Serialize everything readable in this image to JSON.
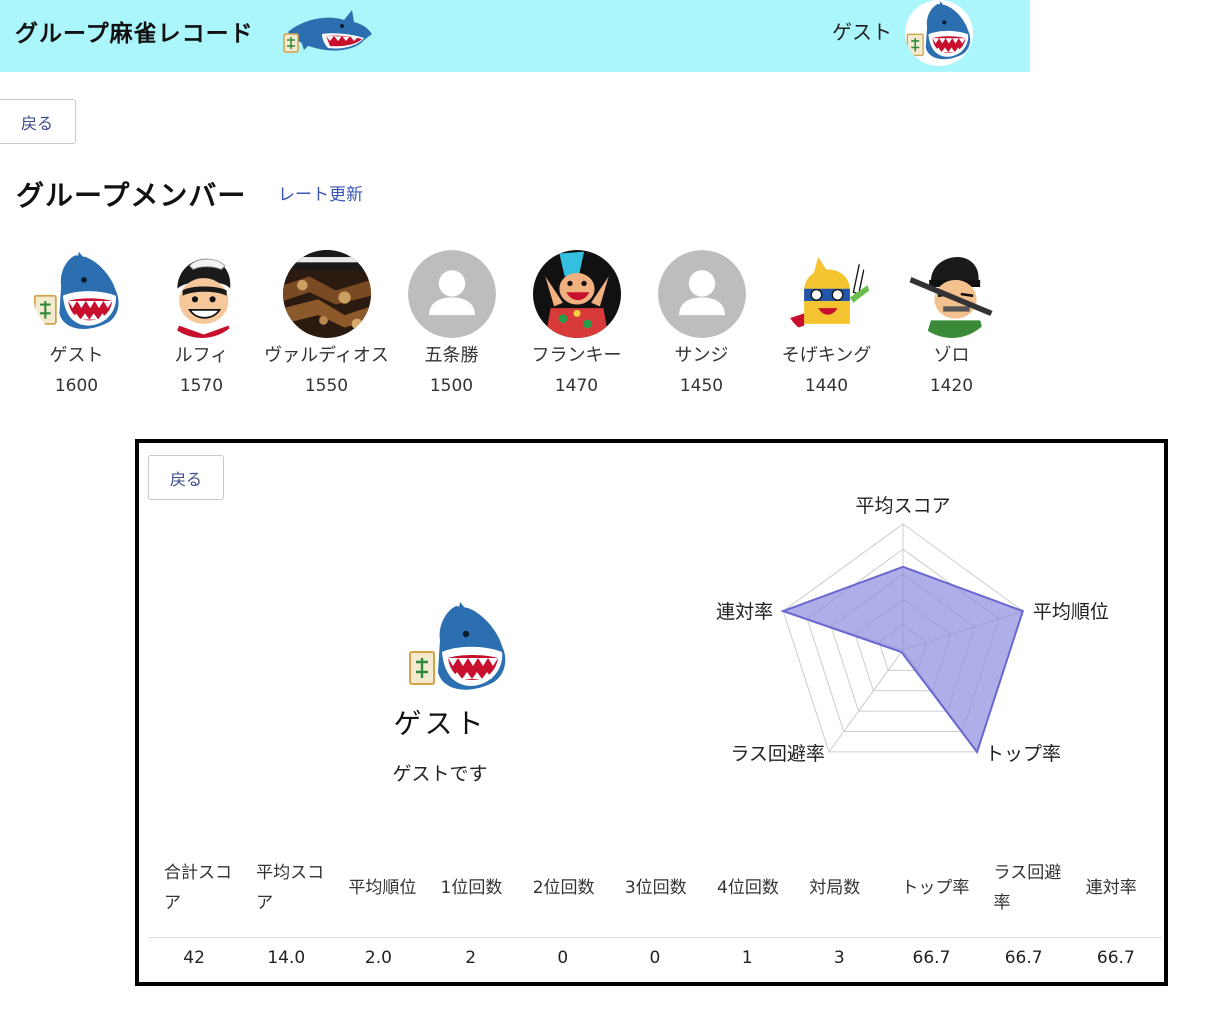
{
  "header": {
    "title": "グループ麻雀レコード",
    "user_name": "ゲスト"
  },
  "back_button_label": "戻る",
  "group": {
    "title": "グループメンバー",
    "rate_update_label": "レート更新",
    "members": [
      {
        "name": "ゲスト",
        "rate": "1600",
        "avatar": "shark-mahjong-icon"
      },
      {
        "name": "ルフィ",
        "rate": "1570",
        "avatar": "luffy-avatar"
      },
      {
        "name": "ヴァルディオス",
        "rate": "1550",
        "avatar": "photo-avatar"
      },
      {
        "name": "五条勝",
        "rate": "1500",
        "avatar": "default-user-icon"
      },
      {
        "name": "フランキー",
        "rate": "1470",
        "avatar": "franky-avatar"
      },
      {
        "name": "サンジ",
        "rate": "1450",
        "avatar": "default-user-icon"
      },
      {
        "name": "そげキング",
        "rate": "1440",
        "avatar": "sogeking-avatar"
      },
      {
        "name": "ゾロ",
        "rate": "1420",
        "avatar": "zoro-avatar"
      }
    ]
  },
  "profile": {
    "name": "ゲスト",
    "description": "ゲストです"
  },
  "chart_data": {
    "type": "radar",
    "axes": [
      "平均スコア",
      "平均順位",
      "トップ率",
      "ラス回避率",
      "連対率"
    ],
    "values": [
      0.66,
      1.0,
      1.0,
      0.02,
      1.0
    ],
    "range": [
      0,
      1
    ],
    "rings": 5,
    "fill_color": "#8f8ce0",
    "stroke_color": "#6a67cf",
    "grid_color": "#cccccc"
  },
  "stats": {
    "headers": [
      "合計スコア",
      "平均スコア",
      "平均順位",
      "1位回数",
      "2位回数",
      "3位回数",
      "4位回数",
      "対局数",
      "トップ率",
      "ラス回避率",
      "連対率"
    ],
    "values": [
      "42",
      "14.0",
      "2.0",
      "2",
      "0",
      "0",
      "1",
      "3",
      "66.7",
      "66.7",
      "66.7"
    ]
  },
  "colors": {
    "header_bg": "#aaf6fb",
    "link": "#3a55b8",
    "button_text": "#3a4a8a"
  }
}
